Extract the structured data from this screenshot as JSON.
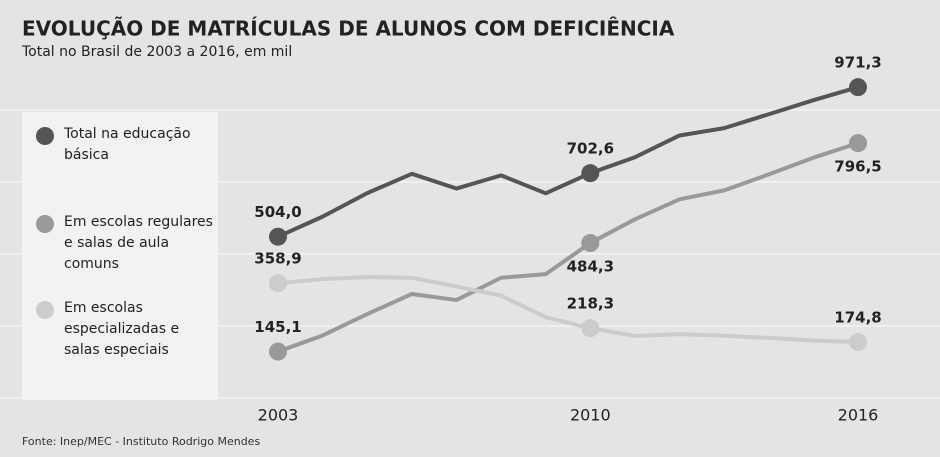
{
  "chart_data": {
    "type": "line",
    "title": "EVOLUÇÃO DE MATRÍCULAS DE ALUNOS COM DEFICIÊNCIA",
    "subtitle": "Total no Brasil de 2003 a 2016, em mil",
    "source": "Fonte: Inep/MEC - Instituto Rodrigo Mendes",
    "x": [
      2003,
      2004,
      2005,
      2006,
      2007,
      2008,
      2009,
      2010,
      2011,
      2012,
      2013,
      2014,
      2015,
      2016
    ],
    "xlim": [
      2003,
      2016
    ],
    "xticks": [
      2003,
      2010,
      2016
    ],
    "ylim": [
      0,
      1200
    ],
    "yticks": [
      0,
      225,
      450,
      675,
      900
    ],
    "grid": true,
    "series": [
      {
        "name": "Total na educação básica",
        "color": "#555555",
        "values": [
          504.0,
          566.8,
          640.3,
          700.6,
          654.6,
          695.7,
          639.7,
          702.6,
          752.3,
          820.4,
          843.3,
          886.8,
          930.7,
          971.3
        ],
        "value_labels": [
          "504,0",
          null,
          null,
          null,
          null,
          null,
          null,
          "702,6",
          null,
          null,
          null,
          null,
          null,
          "971,3"
        ]
      },
      {
        "name": "Em escolas regulares e salas de aula comuns",
        "color": "#999999",
        "values": [
          145.1,
          195.4,
          262.2,
          325.1,
          306.1,
          375.8,
          387.0,
          484.3,
          558.4,
          620.8,
          648.9,
          698.8,
          750.9,
          796.5
        ],
        "value_labels": [
          "145,1",
          null,
          null,
          null,
          null,
          null,
          null,
          "484,3",
          null,
          null,
          null,
          null,
          null,
          "796,5"
        ]
      },
      {
        "name": "Em escolas especializadas e salas especiais",
        "color": "#cccccc",
        "values": [
          358.9,
          371.4,
          378.1,
          375.5,
          348.5,
          319.9,
          252.7,
          218.3,
          193.9,
          199.7,
          194.4,
          188.0,
          179.7,
          174.8
        ],
        "value_labels": [
          "358,9",
          null,
          null,
          null,
          null,
          null,
          null,
          "218,3",
          null,
          null,
          null,
          null,
          null,
          "174,8"
        ]
      }
    ]
  }
}
